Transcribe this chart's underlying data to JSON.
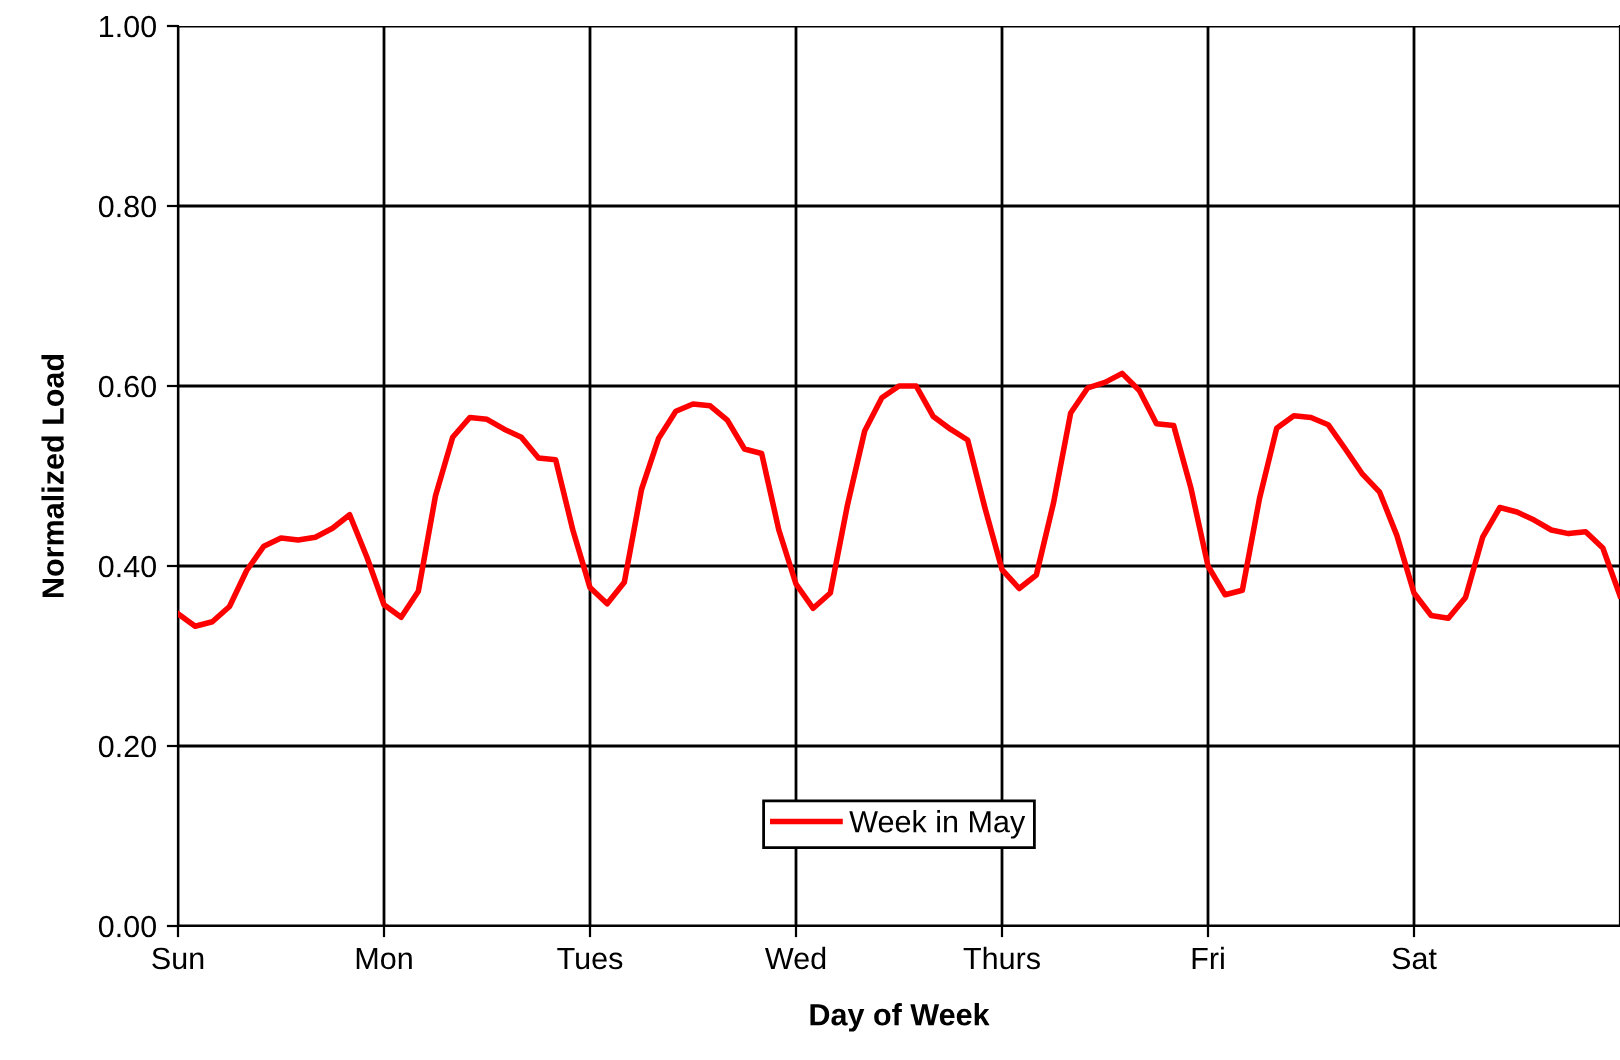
{
  "chart_data": {
    "type": "line",
    "xlabel": "Day of Week",
    "ylabel": "Normalized Load",
    "categories": [
      "Sun",
      null,
      null,
      null,
      null,
      null,
      null,
      null,
      null,
      null,
      null,
      null,
      "Mon",
      null,
      null,
      null,
      null,
      null,
      null,
      null,
      null,
      null,
      null,
      null,
      "Tues",
      null,
      null,
      null,
      null,
      null,
      null,
      null,
      null,
      null,
      null,
      null,
      "Wed",
      null,
      null,
      null,
      null,
      null,
      null,
      null,
      null,
      null,
      null,
      null,
      "Thurs",
      null,
      null,
      null,
      null,
      null,
      null,
      null,
      null,
      null,
      null,
      null,
      "Fri",
      null,
      null,
      null,
      null,
      null,
      null,
      null,
      null,
      null,
      null,
      null,
      "Sat",
      null,
      null,
      null,
      null,
      null,
      null,
      null,
      null,
      null,
      null,
      null,
      null
    ],
    "series": [
      {
        "name": "Week in May",
        "color": "#ff0000",
        "values": [
          0.347,
          0.333,
          0.338,
          0.355,
          0.395,
          0.422,
          0.431,
          0.429,
          0.432,
          0.442,
          0.457,
          0.41,
          0.357,
          0.343,
          0.372,
          0.478,
          0.543,
          0.565,
          0.563,
          0.552,
          0.543,
          0.52,
          0.518,
          0.44,
          0.376,
          0.358,
          0.382,
          0.485,
          0.542,
          0.572,
          0.58,
          0.578,
          0.562,
          0.53,
          0.525,
          0.44,
          0.38,
          0.353,
          0.37,
          0.468,
          0.55,
          0.587,
          0.6,
          0.6,
          0.566,
          0.552,
          0.54,
          0.465,
          0.396,
          0.375,
          0.39,
          0.47,
          0.57,
          0.598,
          0.604,
          0.614,
          0.595,
          0.558,
          0.556,
          0.487,
          0.4,
          0.368,
          0.373,
          0.475,
          0.553,
          0.567,
          0.565,
          0.557,
          0.53,
          0.502,
          0.482,
          0.434,
          0.37,
          0.345,
          0.342,
          0.365,
          0.432,
          0.465,
          0.46,
          0.451,
          0.44,
          0.436,
          0.438,
          0.42,
          0.367
        ]
      }
    ],
    "ylim": [
      0,
      1
    ],
    "yticks": [
      {
        "value": 0,
        "label": "0.00"
      },
      {
        "value": 0.2,
        "label": "0.20"
      },
      {
        "value": 0.4,
        "label": "0.40"
      },
      {
        "value": 0.6,
        "label": "0.60"
      },
      {
        "value": 0.8,
        "label": "0.80"
      },
      {
        "value": 1,
        "label": "1.00"
      }
    ],
    "grid": true,
    "legend": "bottom",
    "marker": "none",
    "line_style": "solid"
  }
}
